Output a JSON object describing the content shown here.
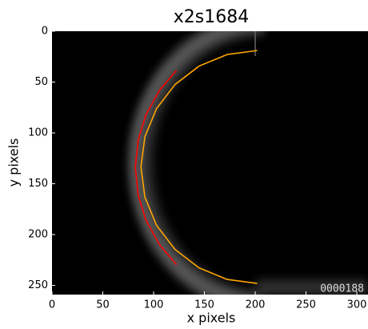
{
  "chart_data": {
    "type": "line",
    "title": "x2s1684",
    "xlabel": "x pixels",
    "ylabel": "y pixels",
    "xlim": [
      0,
      311
    ],
    "ylim": [
      259,
      0
    ],
    "xticks": [
      0,
      50,
      100,
      150,
      200,
      250,
      300
    ],
    "yticks": [
      0,
      50,
      100,
      150,
      200,
      250
    ],
    "annotation": "0000188",
    "series": [
      {
        "color": "#ffa500",
        "x": [
          202,
          172.4,
          144.7,
          121,
          102.8,
          91.4,
          87.5,
          91.4,
          102.8,
          121,
          144.7,
          172.4,
          202
        ],
        "values": [
          19,
          22.9,
          34.3,
          52.5,
          76.2,
          103.9,
          133.5,
          163.1,
          190.8,
          214.5,
          232.7,
          244.1,
          248
        ]
      },
      {
        "color": "#ff0000",
        "x": [
          122.5,
          106.0,
          92.5,
          84.9,
          82.0,
          84.9,
          92.5,
          106.0,
          122.5
        ],
        "values": [
          38.5,
          57.8,
          82.1,
          106.4,
          134,
          161.6,
          185.9,
          210.2,
          229.5
        ]
      }
    ]
  }
}
